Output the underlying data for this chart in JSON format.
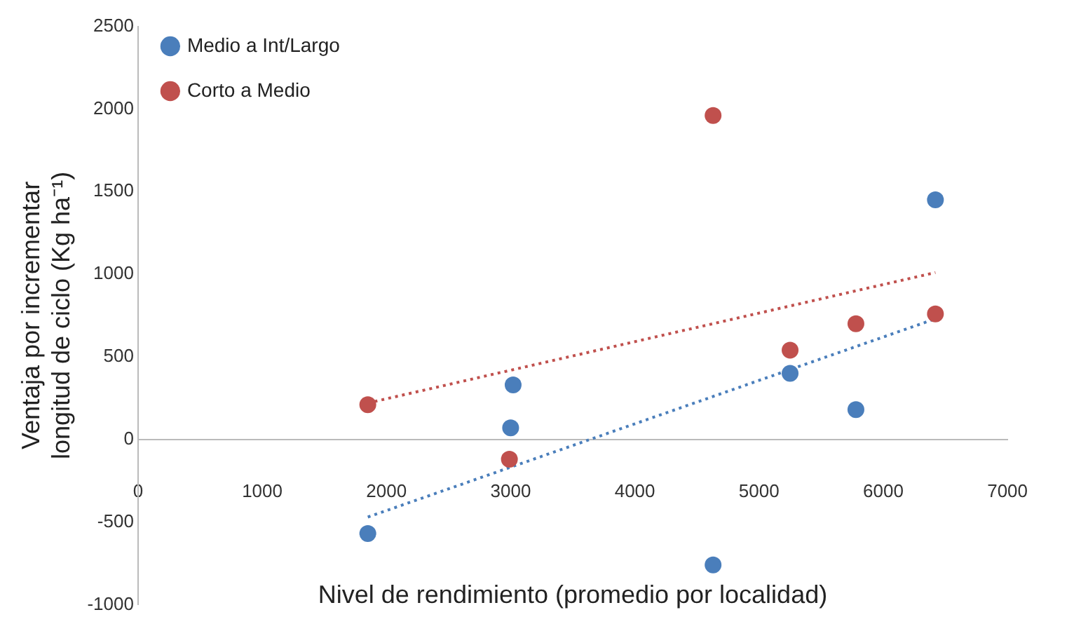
{
  "chart_data": {
    "type": "scatter",
    "xlabel": "Nivel de rendimiento (promedio por localidad)",
    "ylabel": "Ventaja por incrementar longitud de ciclo (Kg ha⁻¹)",
    "xlim": [
      0,
      7000
    ],
    "xticks": [
      0,
      1000,
      2000,
      3000,
      4000,
      5000,
      6000,
      7000
    ],
    "ylim": [
      -1000,
      2500
    ],
    "yticks": [
      -1000,
      -500,
      0,
      500,
      1000,
      1500,
      2000,
      2500
    ],
    "grid": false,
    "legend": "top left",
    "marker": "circle",
    "series": [
      {
        "name": "Medio a Int/Largo",
        "color": "#4a7ebb",
        "x": [
          1850,
          3000,
          3020,
          4630,
          5250,
          5780,
          6420
        ],
        "values": [
          -570,
          70,
          330,
          -760,
          400,
          180,
          1450
        ]
      },
      {
        "name": "Corto a Medio",
        "color": "#c0504d",
        "x": [
          1850,
          2990,
          4630,
          5250,
          5780,
          6420
        ],
        "values": [
          210,
          -120,
          1960,
          540,
          700,
          760
        ]
      },
      {
        "type": "line",
        "color": "#4a7ebb",
        "line_style": "dotted",
        "marker": "none",
        "x": [
          1850,
          6420
        ],
        "values": [
          -470,
          730
        ]
      },
      {
        "type": "line",
        "color": "#c0504d",
        "line_style": "dotted",
        "marker": "none",
        "x": [
          1850,
          6420
        ],
        "values": [
          220,
          1010
        ]
      }
    ]
  }
}
